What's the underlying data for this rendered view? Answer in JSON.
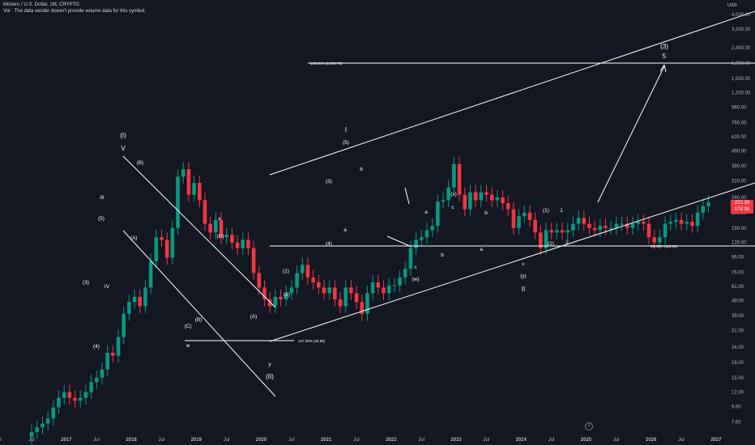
{
  "header": {
    "symbol_line": "Monero / U.S. Dollar, 1M, CRYPTO",
    "vol_line": "Vol · The data vendor doesn't provide volume data for this symbol."
  },
  "currency": "USD",
  "last_price": {
    "value": "222.39",
    "countdown": "17d 3h"
  },
  "colors": {
    "background": "#131722",
    "up": "#089981",
    "down": "#f23645",
    "lines": "#ffffff",
    "axis_text": "#b2b5be"
  },
  "chart_data": {
    "type": "candlestick",
    "scale": "log",
    "ylim": [
      6.3,
      5200
    ],
    "y_ticks": [
      "4,000.00",
      "3,200.00",
      "2,400.00",
      "1,900.00",
      "1,500.00",
      "1,200.00",
      "960.00",
      "760.00",
      "610.00",
      "490.00",
      "390.00",
      "310.00",
      "240.00",
      "190.00",
      "150.00",
      "120.00",
      "96.00",
      "76.00",
      "61.00",
      "49.00",
      "39.00",
      "31.00",
      "24.00",
      "19.00",
      "15.00",
      "12.00",
      "9.60",
      "7.60"
    ],
    "x_ticks": [
      "16",
      "Jul",
      "2017",
      "Jul",
      "2018",
      "Jul",
      "2019",
      "Jul",
      "2020",
      "Jul",
      "2021",
      "Jul",
      "2022",
      "Jul",
      "2023",
      "Jul",
      "2024",
      "Jul",
      "2025",
      "Jul",
      "2026",
      "Jul",
      "2027"
    ],
    "ohlc_closes": [
      6.5,
      7.0,
      7.4,
      8.0,
      9.5,
      11.0,
      12.0,
      11.0,
      10.5,
      11.0,
      12.0,
      14.0,
      15.0,
      17.0,
      22.0,
      21.0,
      28.0,
      40.0,
      48.0,
      52.0,
      45.0,
      60.0,
      90.0,
      130.0,
      125.0,
      95.0,
      150.0,
      330.0,
      370.0,
      250.0,
      300.0,
      230.0,
      160.0,
      140.0,
      170.0,
      130.0,
      135.0,
      120.0,
      110.0,
      125.0,
      110.0,
      75.0,
      60.0,
      50.0,
      45.0,
      52.0,
      50.0,
      55.0,
      60.0,
      75.0,
      85.0,
      70.0,
      65.0,
      60.0,
      55.0,
      60.0,
      50.0,
      45.0,
      60.0,
      55.0,
      48.0,
      40.0,
      55.0,
      65.0,
      60.0,
      55.0,
      62.0,
      62.0,
      70.0,
      80.0,
      110.0,
      125.0,
      130.0,
      145.0,
      155.0,
      225.0,
      230.0,
      280.0,
      400.0,
      250.0,
      200.0,
      260.0,
      230.0,
      260.0,
      250.0,
      230.0,
      240.0,
      220.0,
      200.0,
      150.0,
      180.0,
      190.0,
      170.0,
      140.0,
      110.0,
      145.0,
      140.0,
      145.0,
      140.0,
      145.0,
      160.0,
      175.0,
      160.0,
      150.0,
      145.0,
      155.0,
      150.0,
      150.0,
      160.0,
      160.0,
      150.0,
      160.0,
      165.0,
      160.0,
      130.0,
      120.0,
      130.0,
      160.0,
      165.0,
      170.0,
      160.0,
      165.0,
      155.0,
      190.0,
      210.0,
      222.39
    ],
    "annotations": {
      "primary": [
        "(I)",
        "V",
        "I",
        "II",
        "(II)",
        "(3)",
        "5"
      ],
      "waves": [
        "III",
        "IV",
        "(5)",
        "(4)",
        "(3)",
        "(A)",
        "(B)",
        "(C)",
        "x",
        "w",
        "(A)",
        "(B)",
        "(C)",
        "y",
        "(1)",
        "(2)",
        "(3)",
        "(4)",
        "(5)",
        "a",
        "b",
        "c",
        "(w)",
        "(x)",
        "a",
        "b",
        "c",
        "a",
        "b",
        "c",
        "(y)",
        "(1)",
        "(2)",
        "1",
        "2"
      ],
      "fib_levels": [
        "100.00% (2,006.78)",
        "127.20% (26.95)",
        "50.00% (116.58)"
      ]
    }
  }
}
